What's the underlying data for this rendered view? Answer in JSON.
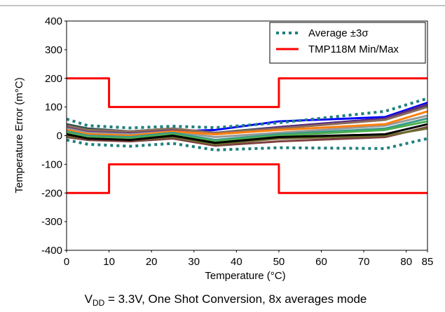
{
  "chart_data": {
    "type": "line",
    "xlabel": "Temperature (°C)",
    "ylabel": "Temperature Error (m°C)",
    "caption": {
      "prefix": "V",
      "subscript": "DD",
      "rest": " = 3.3V, One Shot Conversion, 8x averages mode"
    },
    "xlim": [
      0,
      85
    ],
    "xticks": [
      0,
      10,
      20,
      30,
      40,
      50,
      60,
      70,
      80,
      85
    ],
    "ylim": [
      -400,
      400
    ],
    "yticks": [
      -400,
      -300,
      -200,
      -100,
      0,
      100,
      200,
      300,
      400
    ],
    "grid": false,
    "legend": "upper right",
    "series": [
      {
        "color": "#2f4f4f",
        "x": [
          0,
          5,
          15,
          25,
          35,
          50,
          75,
          85
        ],
        "values": [
          40,
          25,
          15,
          25,
          10,
          30,
          60,
          105
        ]
      },
      {
        "color": "#7f3f3f",
        "x": [
          0,
          5,
          15,
          25,
          35,
          50,
          75,
          85
        ],
        "values": [
          -5,
          -15,
          -20,
          -10,
          -35,
          -20,
          -5,
          30
        ]
      },
      {
        "color": "#0000ff",
        "x": [
          0,
          5,
          15,
          25,
          35,
          50,
          75,
          85
        ],
        "values": [
          20,
          10,
          5,
          15,
          20,
          50,
          65,
          115
        ]
      },
      {
        "color": "#5b2c83",
        "x": [
          0,
          5,
          15,
          25,
          35,
          50,
          75,
          85
        ],
        "values": [
          30,
          15,
          10,
          20,
          5,
          30,
          60,
          110
        ]
      },
      {
        "color": "#8c6d5a",
        "x": [
          0,
          5,
          15,
          25,
          35,
          50,
          75,
          85
        ],
        "values": [
          35,
          20,
          15,
          25,
          10,
          25,
          55,
          100
        ]
      },
      {
        "color": "#999999",
        "x": [
          0,
          5,
          15,
          25,
          35,
          50,
          75,
          85
        ],
        "values": [
          25,
          10,
          5,
          15,
          -5,
          10,
          35,
          70
        ]
      },
      {
        "color": "#ff7f0e",
        "x": [
          0,
          5,
          15,
          25,
          35,
          50,
          75,
          85
        ],
        "values": [
          20,
          5,
          0,
          15,
          5,
          20,
          40,
          85
        ]
      },
      {
        "color": "#3a9a8a",
        "x": [
          0,
          5,
          15,
          25,
          35,
          50,
          75,
          85
        ],
        "values": [
          15,
          0,
          -5,
          10,
          -15,
          5,
          25,
          60
        ]
      },
      {
        "color": "#4caf50",
        "x": [
          0,
          5,
          15,
          25,
          35,
          50,
          75,
          85
        ],
        "values": [
          10,
          -5,
          -10,
          5,
          -20,
          0,
          20,
          50
        ]
      },
      {
        "color": "#6b6b2f",
        "x": [
          0,
          5,
          15,
          25,
          35,
          50,
          75,
          85
        ],
        "values": [
          0,
          -10,
          -15,
          -5,
          -30,
          -10,
          0,
          25
        ]
      },
      {
        "color": "#000000",
        "x": [
          0,
          5,
          15,
          25,
          35,
          50,
          75,
          85
        ],
        "values": [
          5,
          -10,
          -15,
          0,
          -25,
          -5,
          5,
          40
        ]
      },
      {
        "name": "Average ±3σ",
        "color": "#1f7f7f",
        "style": "dotted",
        "x": [
          0,
          5,
          15,
          25,
          35,
          50,
          75,
          85
        ],
        "values": [
          58,
          35,
          27,
          33,
          28,
          45,
          85,
          130
        ]
      },
      {
        "color": "#1f7f7f",
        "style": "dotted",
        "x": [
          0,
          5,
          15,
          25,
          35,
          50,
          75,
          85
        ],
        "values": [
          -15,
          -30,
          -37,
          -27,
          -50,
          -42,
          -45,
          -10
        ]
      },
      {
        "name": "TMP118M Min/Max",
        "color": "#ff0000",
        "x": [
          0,
          10,
          10,
          50,
          50,
          85
        ],
        "values": [
          200,
          200,
          100,
          100,
          200,
          200
        ]
      },
      {
        "color": "#ff0000",
        "x": [
          0,
          10,
          10,
          50,
          50,
          85
        ],
        "values": [
          -200,
          -200,
          -100,
          -100,
          -200,
          -200
        ]
      }
    ]
  }
}
